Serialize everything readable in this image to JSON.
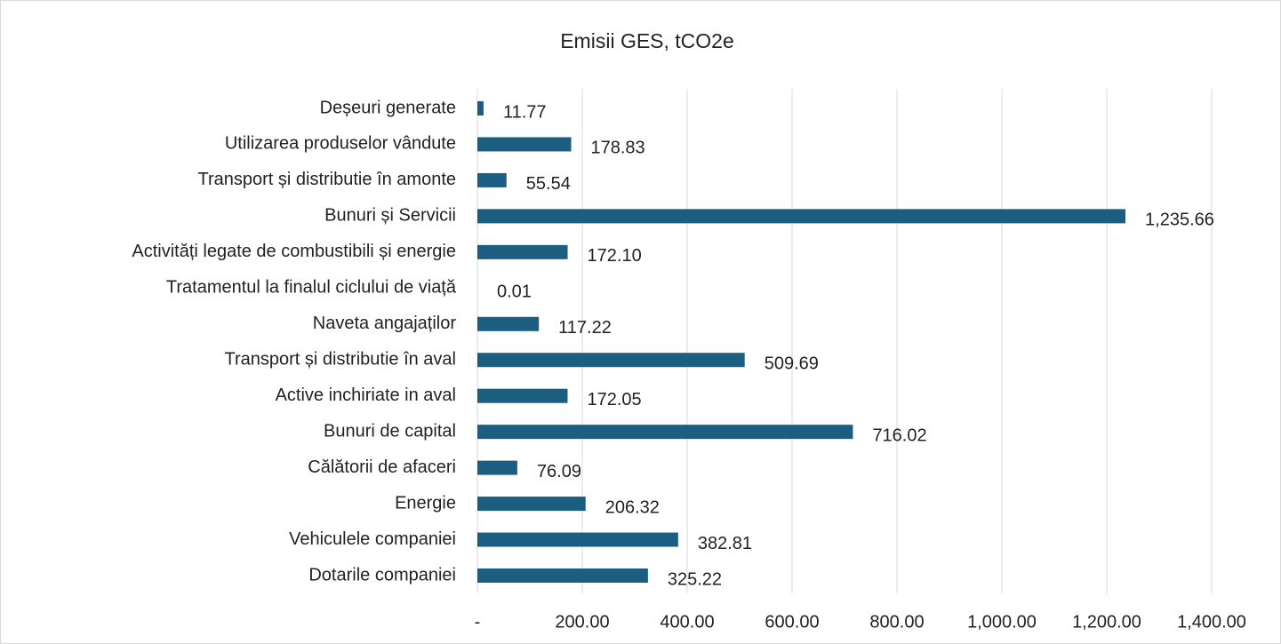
{
  "chart_data": {
    "type": "bar",
    "orientation": "horizontal",
    "title": "Emisii GES, tCO2e",
    "categories": [
      "Deșeuri generate",
      "Utilizarea produselor vândute",
      "Transport și distributie în amonte",
      "Bunuri și Servicii",
      "Activități legate de combustibili și energie",
      "Tratamentul la finalul ciclului de viață",
      "Naveta angajaților",
      "Transport și distributie în aval",
      "Active inchiriate in aval",
      "Bunuri de capital",
      "Călătorii de afaceri",
      "Energie",
      "Vehiculele companiei",
      "Dotarile companiei"
    ],
    "values": [
      11.77,
      178.83,
      55.54,
      1235.66,
      172.1,
      0.01,
      117.22,
      509.69,
      172.05,
      716.02,
      76.09,
      206.32,
      382.81,
      325.22
    ],
    "value_labels": [
      "11.77",
      "178.83",
      "55.54",
      "1,235.66",
      "172.10",
      "0.01",
      "117.22",
      "509.69",
      "172.05",
      "716.02",
      "76.09",
      "206.32",
      "382.81",
      "325.22"
    ],
    "color": "#1b5e80",
    "xlim": [
      0,
      1400
    ],
    "xticks": [
      {
        "value": 0,
        "label": "-"
      },
      {
        "value": 200,
        "label": "200.00"
      },
      {
        "value": 400,
        "label": "400.00"
      },
      {
        "value": 600,
        "label": "600.00"
      },
      {
        "value": 800,
        "label": "800.00"
      },
      {
        "value": 1000,
        "label": "1,000.00"
      },
      {
        "value": 1200,
        "label": "1,200.00"
      },
      {
        "value": 1400,
        "label": "1,400.00"
      }
    ],
    "grid": true
  }
}
